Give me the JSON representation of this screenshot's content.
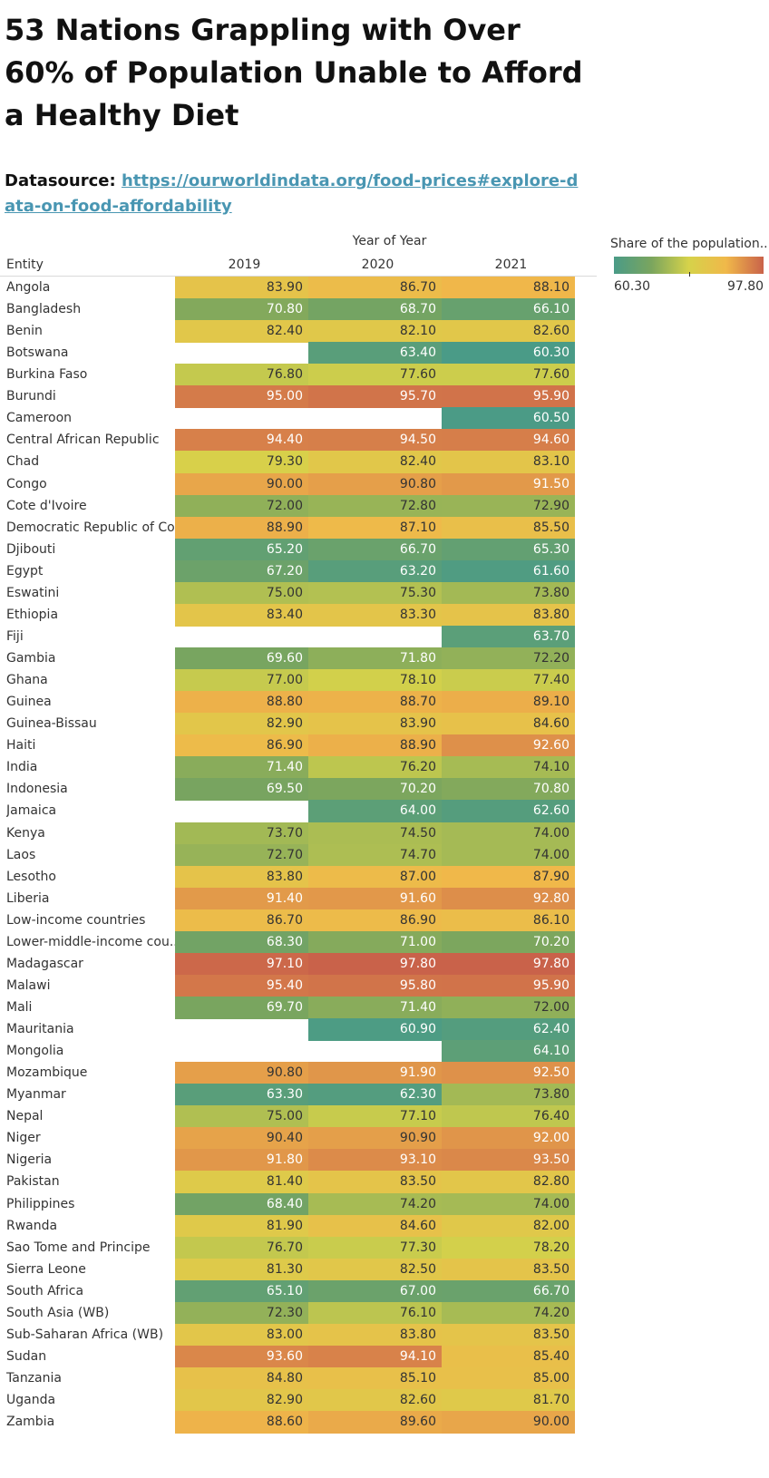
{
  "title": "53 Nations Grappling with Over 60% of Population Unable to Afford a Healthy Diet",
  "source": {
    "label": "Datasource: ",
    "url": "https://ourworldindata.org/food-prices#explore-data-on-food-affordability"
  },
  "legend": {
    "title": "Share of the population..",
    "min_label": "60.30",
    "max_label": "97.80",
    "colors": [
      "#4a9b87",
      "#7aa55e",
      "#d6d24a",
      "#f0b84a",
      "#c9624a"
    ]
  },
  "chart_data": {
    "type": "heatmap",
    "title": "53 Nations Grappling with Over 60% of Population Unable to Afford a Healthy Diet",
    "x_group_label": "Year of Year",
    "row_header": "Entity",
    "columns": [
      "2019",
      "2020",
      "2021"
    ],
    "color_range": [
      60.3,
      97.8
    ],
    "rows": [
      {
        "entity": "Angola",
        "values": [
          83.9,
          86.7,
          88.1
        ]
      },
      {
        "entity": "Bangladesh",
        "values": [
          70.8,
          68.7,
          66.1
        ]
      },
      {
        "entity": "Benin",
        "values": [
          82.4,
          82.1,
          82.6
        ]
      },
      {
        "entity": "Botswana",
        "values": [
          null,
          63.4,
          60.3
        ]
      },
      {
        "entity": "Burkina Faso",
        "values": [
          76.8,
          77.6,
          77.6
        ]
      },
      {
        "entity": "Burundi",
        "values": [
          95.0,
          95.7,
          95.9
        ]
      },
      {
        "entity": "Cameroon",
        "values": [
          null,
          null,
          60.5
        ]
      },
      {
        "entity": "Central African Republic",
        "values": [
          94.4,
          94.5,
          94.6
        ]
      },
      {
        "entity": "Chad",
        "values": [
          79.3,
          82.4,
          83.1
        ]
      },
      {
        "entity": "Congo",
        "values": [
          90.0,
          90.8,
          91.5
        ]
      },
      {
        "entity": "Cote d'Ivoire",
        "values": [
          72.0,
          72.8,
          72.9
        ]
      },
      {
        "entity": "Democratic Republic of Co..",
        "values": [
          88.9,
          87.1,
          85.5
        ]
      },
      {
        "entity": "Djibouti",
        "values": [
          65.2,
          66.7,
          65.3
        ]
      },
      {
        "entity": "Egypt",
        "values": [
          67.2,
          63.2,
          61.6
        ]
      },
      {
        "entity": "Eswatini",
        "values": [
          75.0,
          75.3,
          73.8
        ]
      },
      {
        "entity": "Ethiopia",
        "values": [
          83.4,
          83.3,
          83.8
        ]
      },
      {
        "entity": "Fiji",
        "values": [
          null,
          null,
          63.7
        ]
      },
      {
        "entity": "Gambia",
        "values": [
          69.6,
          71.8,
          72.2
        ]
      },
      {
        "entity": "Ghana",
        "values": [
          77.0,
          78.1,
          77.4
        ]
      },
      {
        "entity": "Guinea",
        "values": [
          88.8,
          88.7,
          89.1
        ]
      },
      {
        "entity": "Guinea-Bissau",
        "values": [
          82.9,
          83.9,
          84.6
        ]
      },
      {
        "entity": "Haiti",
        "values": [
          86.9,
          88.9,
          92.6
        ]
      },
      {
        "entity": "India",
        "values": [
          71.4,
          76.2,
          74.1
        ]
      },
      {
        "entity": "Indonesia",
        "values": [
          69.5,
          70.2,
          70.8
        ]
      },
      {
        "entity": "Jamaica",
        "values": [
          null,
          64.0,
          62.6
        ]
      },
      {
        "entity": "Kenya",
        "values": [
          73.7,
          74.5,
          74.0
        ]
      },
      {
        "entity": "Laos",
        "values": [
          72.7,
          74.7,
          74.0
        ]
      },
      {
        "entity": "Lesotho",
        "values": [
          83.8,
          87.0,
          87.9
        ]
      },
      {
        "entity": "Liberia",
        "values": [
          91.4,
          91.6,
          92.8
        ]
      },
      {
        "entity": "Low-income countries",
        "values": [
          86.7,
          86.9,
          86.1
        ]
      },
      {
        "entity": "Lower-middle-income cou..",
        "values": [
          68.3,
          71.0,
          70.2
        ]
      },
      {
        "entity": "Madagascar",
        "values": [
          97.1,
          97.8,
          97.8
        ]
      },
      {
        "entity": "Malawi",
        "values": [
          95.4,
          95.8,
          95.9
        ]
      },
      {
        "entity": "Mali",
        "values": [
          69.7,
          71.4,
          72.0
        ]
      },
      {
        "entity": "Mauritania",
        "values": [
          null,
          60.9,
          62.4
        ]
      },
      {
        "entity": "Mongolia",
        "values": [
          null,
          null,
          64.1
        ]
      },
      {
        "entity": "Mozambique",
        "values": [
          90.8,
          91.9,
          92.5
        ]
      },
      {
        "entity": "Myanmar",
        "values": [
          63.3,
          62.3,
          73.8
        ]
      },
      {
        "entity": "Nepal",
        "values": [
          75.0,
          77.1,
          76.4
        ]
      },
      {
        "entity": "Niger",
        "values": [
          90.4,
          90.9,
          92.0
        ]
      },
      {
        "entity": "Nigeria",
        "values": [
          91.8,
          93.1,
          93.5
        ]
      },
      {
        "entity": "Pakistan",
        "values": [
          81.4,
          83.5,
          82.8
        ]
      },
      {
        "entity": "Philippines",
        "values": [
          68.4,
          74.2,
          74.0
        ]
      },
      {
        "entity": "Rwanda",
        "values": [
          81.9,
          84.6,
          82.0
        ]
      },
      {
        "entity": "Sao Tome and Principe",
        "values": [
          76.7,
          77.3,
          78.2
        ]
      },
      {
        "entity": "Sierra Leone",
        "values": [
          81.3,
          82.5,
          83.5
        ]
      },
      {
        "entity": "South Africa",
        "values": [
          65.1,
          67.0,
          66.7
        ]
      },
      {
        "entity": "South Asia (WB)",
        "values": [
          72.3,
          76.1,
          74.2
        ]
      },
      {
        "entity": "Sub-Saharan Africa (WB)",
        "values": [
          83.0,
          83.8,
          83.5
        ]
      },
      {
        "entity": "Sudan",
        "values": [
          93.6,
          94.1,
          85.4
        ]
      },
      {
        "entity": "Tanzania",
        "values": [
          84.8,
          85.1,
          85.0
        ]
      },
      {
        "entity": "Uganda",
        "values": [
          82.9,
          82.6,
          81.7
        ]
      },
      {
        "entity": "Zambia",
        "values": [
          88.6,
          89.6,
          90.0
        ]
      }
    ]
  }
}
